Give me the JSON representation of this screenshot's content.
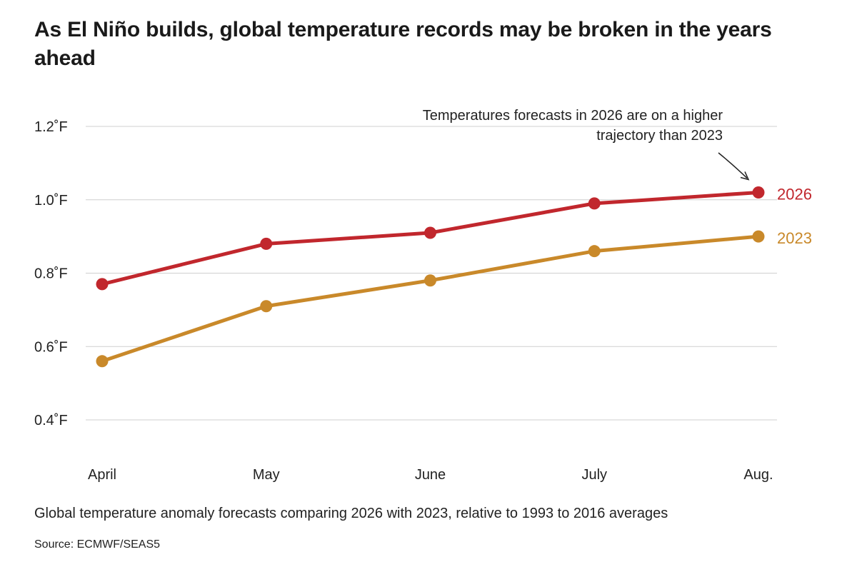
{
  "chart_data": {
    "type": "line",
    "title": "As El Niño builds, global temperature records may be broken in the years ahead",
    "subtitle": "Global temperature anomaly forecasts comparing 2026 with 2023, relative to 1993 to 2016 averages",
    "source": "Source: ECMWF/SEAS5",
    "categories": [
      "April",
      "May",
      "June",
      "July",
      "Aug."
    ],
    "xlabel": "",
    "ylabel": "",
    "ylim": [
      0.4,
      1.2
    ],
    "yticks": [
      {
        "value": 1.2,
        "label": "1.2˚F"
      },
      {
        "value": 1.0,
        "label": "1.0˚F"
      },
      {
        "value": 0.8,
        "label": "0.8˚F"
      },
      {
        "value": 0.6,
        "label": "0.6˚F"
      },
      {
        "value": 0.4,
        "label": "0.4˚F"
      }
    ],
    "grid": true,
    "series": [
      {
        "name": "2026",
        "color": "#c1272d",
        "values": [
          0.77,
          0.88,
          0.91,
          0.99,
          1.02
        ]
      },
      {
        "name": "2023",
        "color": "#c9892a",
        "values": [
          0.56,
          0.71,
          0.78,
          0.86,
          0.9
        ]
      }
    ],
    "annotation": {
      "lines": [
        "Temperatures forecasts in 2026 are on a higher",
        "trajectory than 2023"
      ],
      "points_to_series": "2026",
      "points_to_category": "Aug."
    }
  }
}
